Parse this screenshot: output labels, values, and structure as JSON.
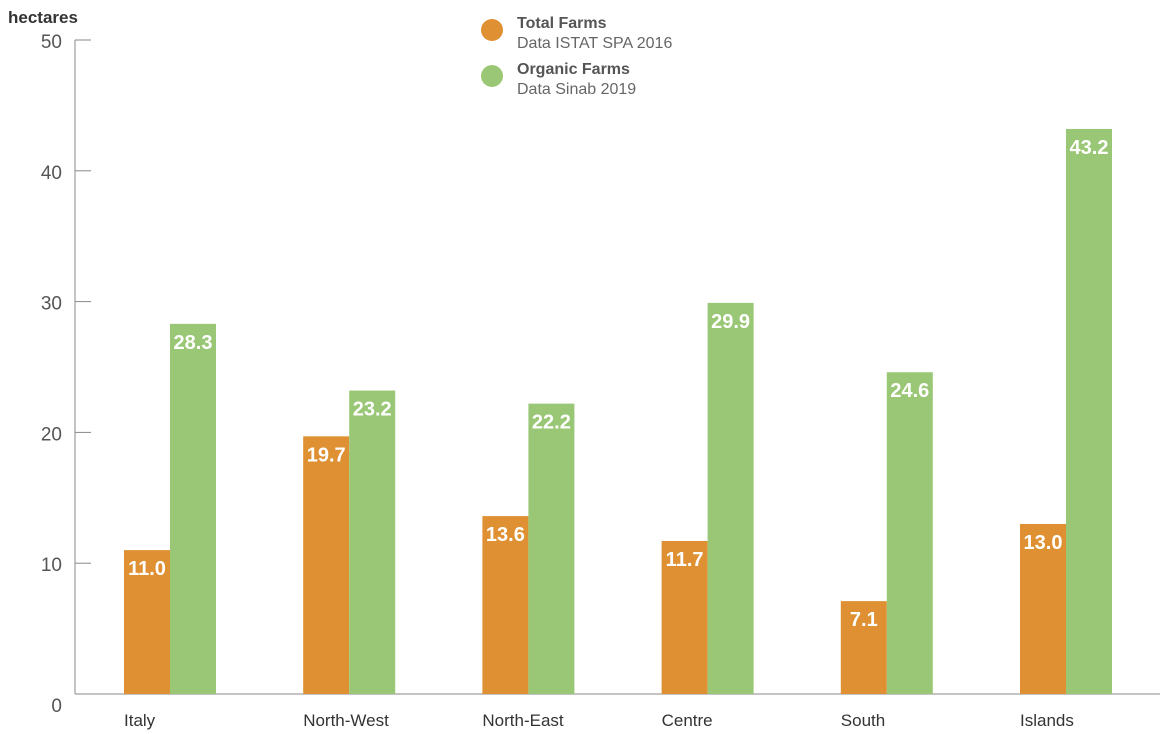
{
  "chart_data": {
    "type": "bar",
    "ylabel": "hectares",
    "ylim": [
      0,
      50
    ],
    "yticks": [
      0,
      10,
      20,
      30,
      40,
      50
    ],
    "categories": [
      "Italy",
      "North-West",
      "North-East",
      "Centre",
      "South",
      "Islands"
    ],
    "series": [
      {
        "name": "Total Farms",
        "source": "Data ISTAT SPA 2016",
        "color": "#df9032",
        "values": [
          11.0,
          19.7,
          13.6,
          11.7,
          7.1,
          13.0
        ]
      },
      {
        "name": "Organic Farms",
        "source": "Data Sinab 2019",
        "color": "#9ac775",
        "values": [
          28.3,
          23.2,
          22.2,
          29.9,
          24.6,
          43.2
        ]
      }
    ],
    "legend_position": "top-center",
    "grid": false
  }
}
